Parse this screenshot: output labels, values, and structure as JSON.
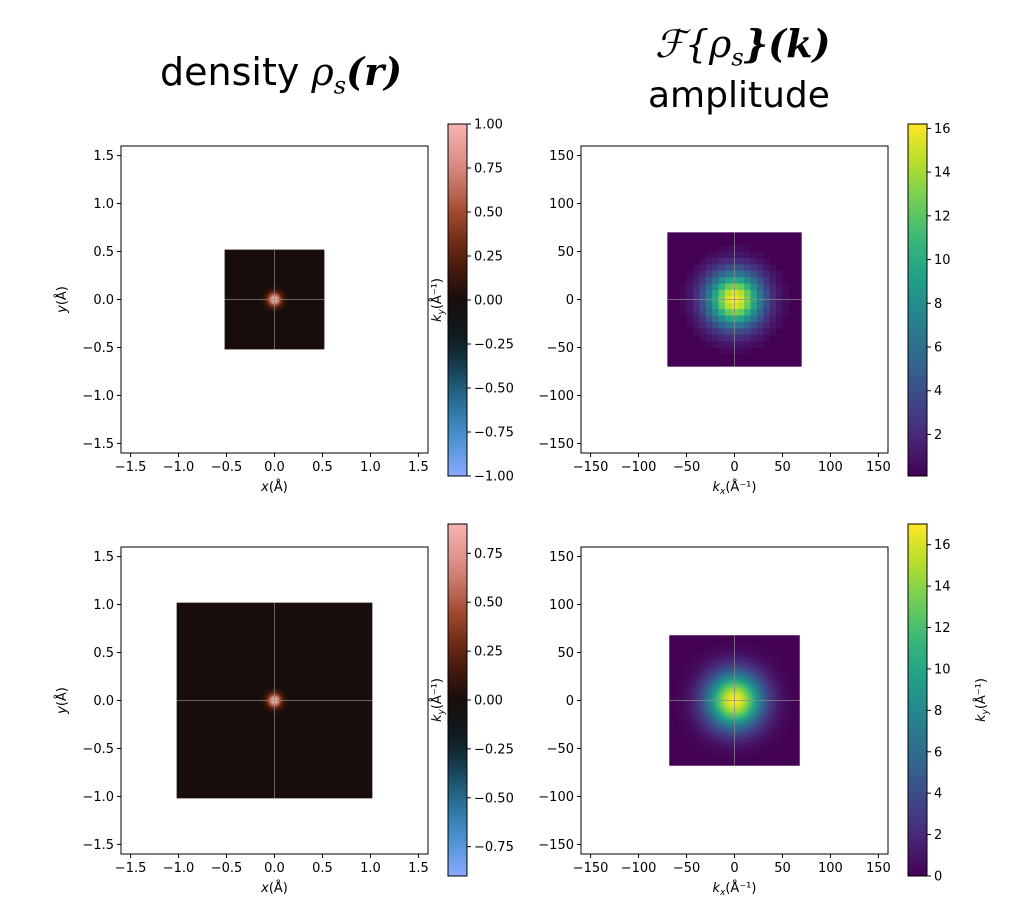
{
  "headings": {
    "left_word": "density",
    "left_math": "ρ",
    "left_sub": "s",
    "left_arg": "(r)",
    "right_math_F": "ℱ",
    "right_math_brace": "{ρ",
    "right_sub": "s",
    "right_arg": "}(k)",
    "right_word": "amplitude"
  },
  "colors": {
    "density_cmap": [
      "#8aa8ff",
      "#3f8fc9",
      "#1f5d7a",
      "#0e1f26",
      "#180d0a",
      "#5a1f0c",
      "#a24a30",
      "#d78a80",
      "#f6b3b3"
    ],
    "viridis": [
      "#440154",
      "#482878",
      "#3e4989",
      "#31688e",
      "#26828e",
      "#1f9e89",
      "#35b779",
      "#6ece58",
      "#b5de2b",
      "#fde725"
    ],
    "crosshair": "#8a8a8a"
  },
  "chart_data": [
    {
      "type": "heatmap",
      "panel": "top-left",
      "xlabel": "x(Å)",
      "ylabel": "y(Å)",
      "xlim": [
        -1.6,
        1.6
      ],
      "ylim": [
        -1.6,
        1.6
      ],
      "xticks": [
        "−1.5",
        "−1.0",
        "−0.5",
        "0.0",
        "0.5",
        "1.0",
        "1.5"
      ],
      "yticks": [
        "−1.5",
        "−1.0",
        "−0.5",
        "0.0",
        "0.5",
        "1.0",
        "1.5"
      ],
      "image_extent": [
        -0.52,
        0.52,
        -0.52,
        0.52
      ],
      "peak": {
        "x": 0.0,
        "y": 0.0,
        "value": 1.0,
        "sigma": 0.05
      },
      "colorbar": {
        "label": "k_y(Å⁻¹)",
        "range": [
          -1.0,
          1.0
        ],
        "ticks": [
          "1.00",
          "0.75",
          "0.50",
          "0.25",
          "0.00",
          "−0.25",
          "−0.50",
          "−0.75",
          "−1.00"
        ]
      }
    },
    {
      "type": "heatmap",
      "panel": "top-right",
      "xlabel": "k_x(Å⁻¹)",
      "ylabel": "",
      "xlim": [
        -160,
        160
      ],
      "ylim": [
        -160,
        160
      ],
      "xticks": [
        "−150",
        "−100",
        "−50",
        "0",
        "50",
        "100",
        "150"
      ],
      "yticks": [
        "−150",
        "−100",
        "−50",
        "0",
        "50",
        "100",
        "150"
      ],
      "image_extent": [
        -70,
        70,
        -70,
        70
      ],
      "peak": {
        "x": 0,
        "y": 0,
        "value": 16.2,
        "sigma": 20
      },
      "pixelated": 21,
      "colorbar": {
        "label": "",
        "range": [
          0.1,
          16.2
        ],
        "ticks": [
          "16",
          "14",
          "12",
          "10",
          "8",
          "6",
          "4",
          "2"
        ]
      }
    },
    {
      "type": "heatmap",
      "panel": "bottom-left",
      "xlabel": "x(Å)",
      "ylabel": "y(Å)",
      "xlim": [
        -1.6,
        1.6
      ],
      "ylim": [
        -1.6,
        1.6
      ],
      "xticks": [
        "−1.5",
        "−1.0",
        "−0.5",
        "0.0",
        "0.5",
        "1.0",
        "1.5"
      ],
      "yticks": [
        "−1.5",
        "−1.0",
        "−0.5",
        "0.0",
        "0.5",
        "1.0",
        "1.5"
      ],
      "image_extent": [
        -1.02,
        1.02,
        -1.02,
        1.02
      ],
      "peak": {
        "x": 0.0,
        "y": 0.0,
        "value": 0.9,
        "sigma": 0.05
      },
      "colorbar": {
        "label": "k_y(Å⁻¹)",
        "range": [
          -0.9,
          0.9
        ],
        "ticks": [
          "0.75",
          "0.50",
          "0.25",
          "0.00",
          "−0.25",
          "−0.50",
          "−0.75"
        ]
      }
    },
    {
      "type": "heatmap",
      "panel": "bottom-right",
      "xlabel": "k_x(Å⁻¹)",
      "ylabel": "",
      "xlim": [
        -160,
        160
      ],
      "ylim": [
        -160,
        160
      ],
      "xticks": [
        "−150",
        "−100",
        "−50",
        "0",
        "50",
        "100",
        "150"
      ],
      "yticks": [
        "−150",
        "−100",
        "−50",
        "0",
        "50",
        "100",
        "150"
      ],
      "image_extent": [
        -68,
        68,
        -68,
        68
      ],
      "peak": {
        "x": 0,
        "y": 0,
        "value": 17.0,
        "sigma": 20
      },
      "pixelated": 0,
      "colorbar": {
        "label": "k_y(Å⁻¹)",
        "range": [
          0,
          17.0
        ],
        "ticks": [
          "16",
          "14",
          "12",
          "10",
          "8",
          "6",
          "4",
          "2",
          "0"
        ]
      }
    }
  ]
}
